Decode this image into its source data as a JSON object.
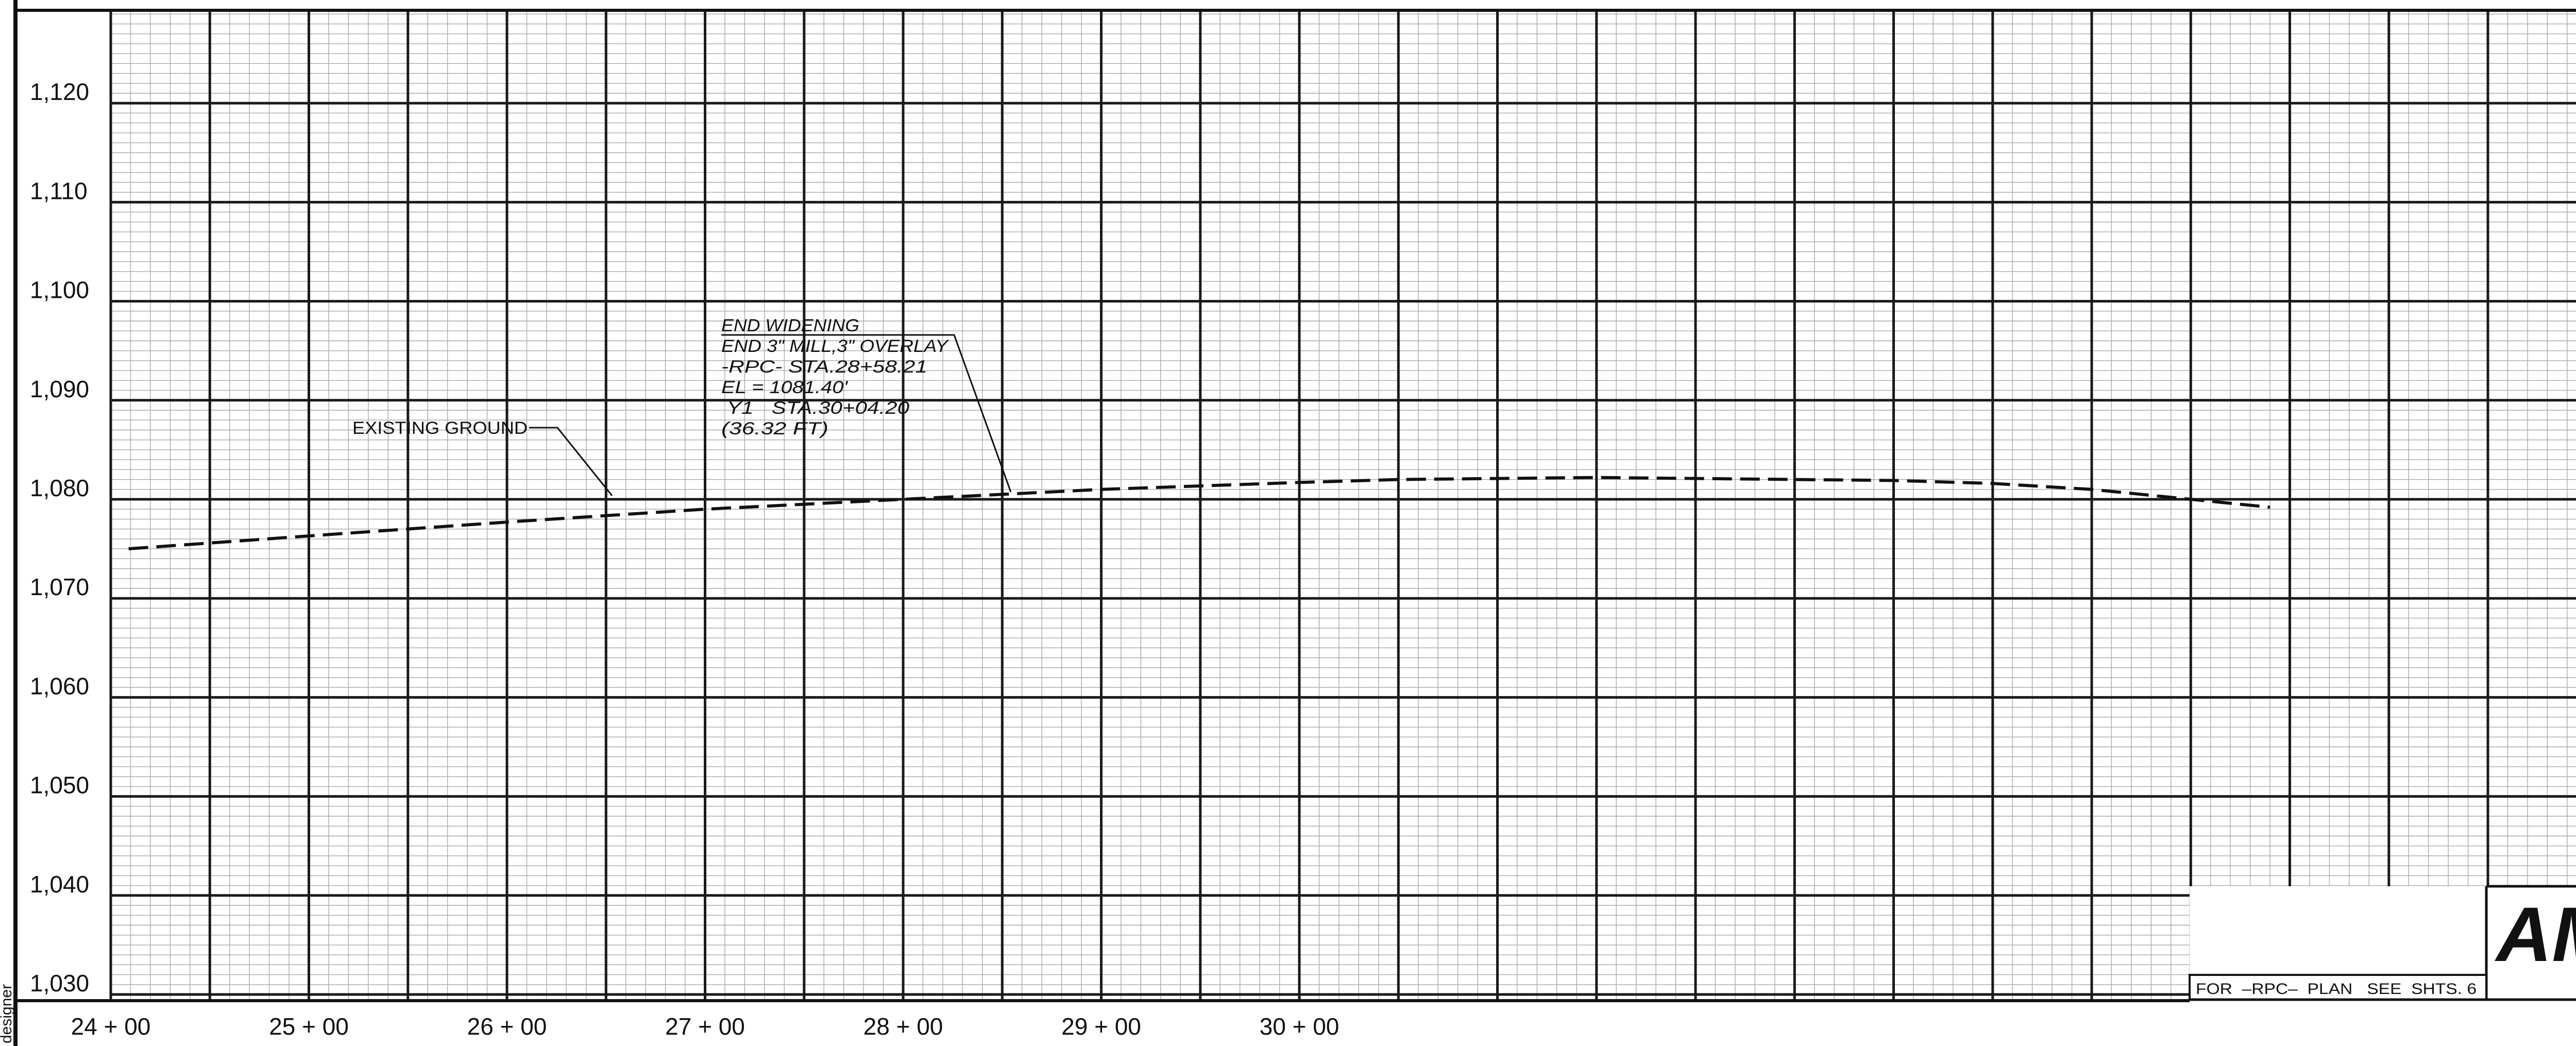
{
  "sheet": {
    "elevation_labels": [
      "1,120",
      "1,110",
      "1,100",
      "1,090",
      "1,080",
      "1,070",
      "1,060",
      "1,050",
      "1,040",
      "1,030"
    ],
    "station_labels": [
      "24 + 00",
      "25 + 00",
      "26 + 00",
      "27 + 00",
      "28 + 00",
      "29 + 00",
      "30 + 00"
    ],
    "existing_ground_label": "EXISTING  GROUND",
    "annotation_lines": [
      "END WIDENING",
      "END 3\" MILL,3\" OVERLAY",
      "-RPC-  STA.28+58.21",
      "EL = 1081.40'",
      " Y1   STA.30+04.20",
      "(36.32  FT)"
    ],
    "title_block_text": "FOR  –RPC–  PLAN   SEE  SHTS. 6",
    "logo_text": "AM",
    "side_text": "designer"
  },
  "chart_data": {
    "type": "line",
    "x_unit": "station_ft",
    "y_unit": "elevation_ft",
    "xlim": [
      2400,
      3600
    ],
    "ylim": [
      1030,
      1130
    ],
    "series": [
      {
        "values": [
          [
            2409,
            1075.0
          ],
          [
            2500,
            1076.3
          ],
          [
            2600,
            1077.7
          ],
          [
            2700,
            1079.0
          ],
          [
            2800,
            1080.0
          ],
          [
            2900,
            1081.0
          ],
          [
            3000,
            1081.7
          ],
          [
            3050,
            1082.0
          ],
          [
            3100,
            1082.1
          ],
          [
            3150,
            1082.2
          ],
          [
            3200,
            1082.1
          ],
          [
            3300,
            1081.9
          ],
          [
            3350,
            1081.6
          ],
          [
            3400,
            1081.0
          ],
          [
            3450,
            1080.0
          ],
          [
            3490,
            1079.2
          ]
        ]
      }
    ]
  },
  "colors": {
    "major_grid": "#1a1a1a",
    "minor_grid": "#a8a8a8",
    "ground_line": "#111111"
  }
}
